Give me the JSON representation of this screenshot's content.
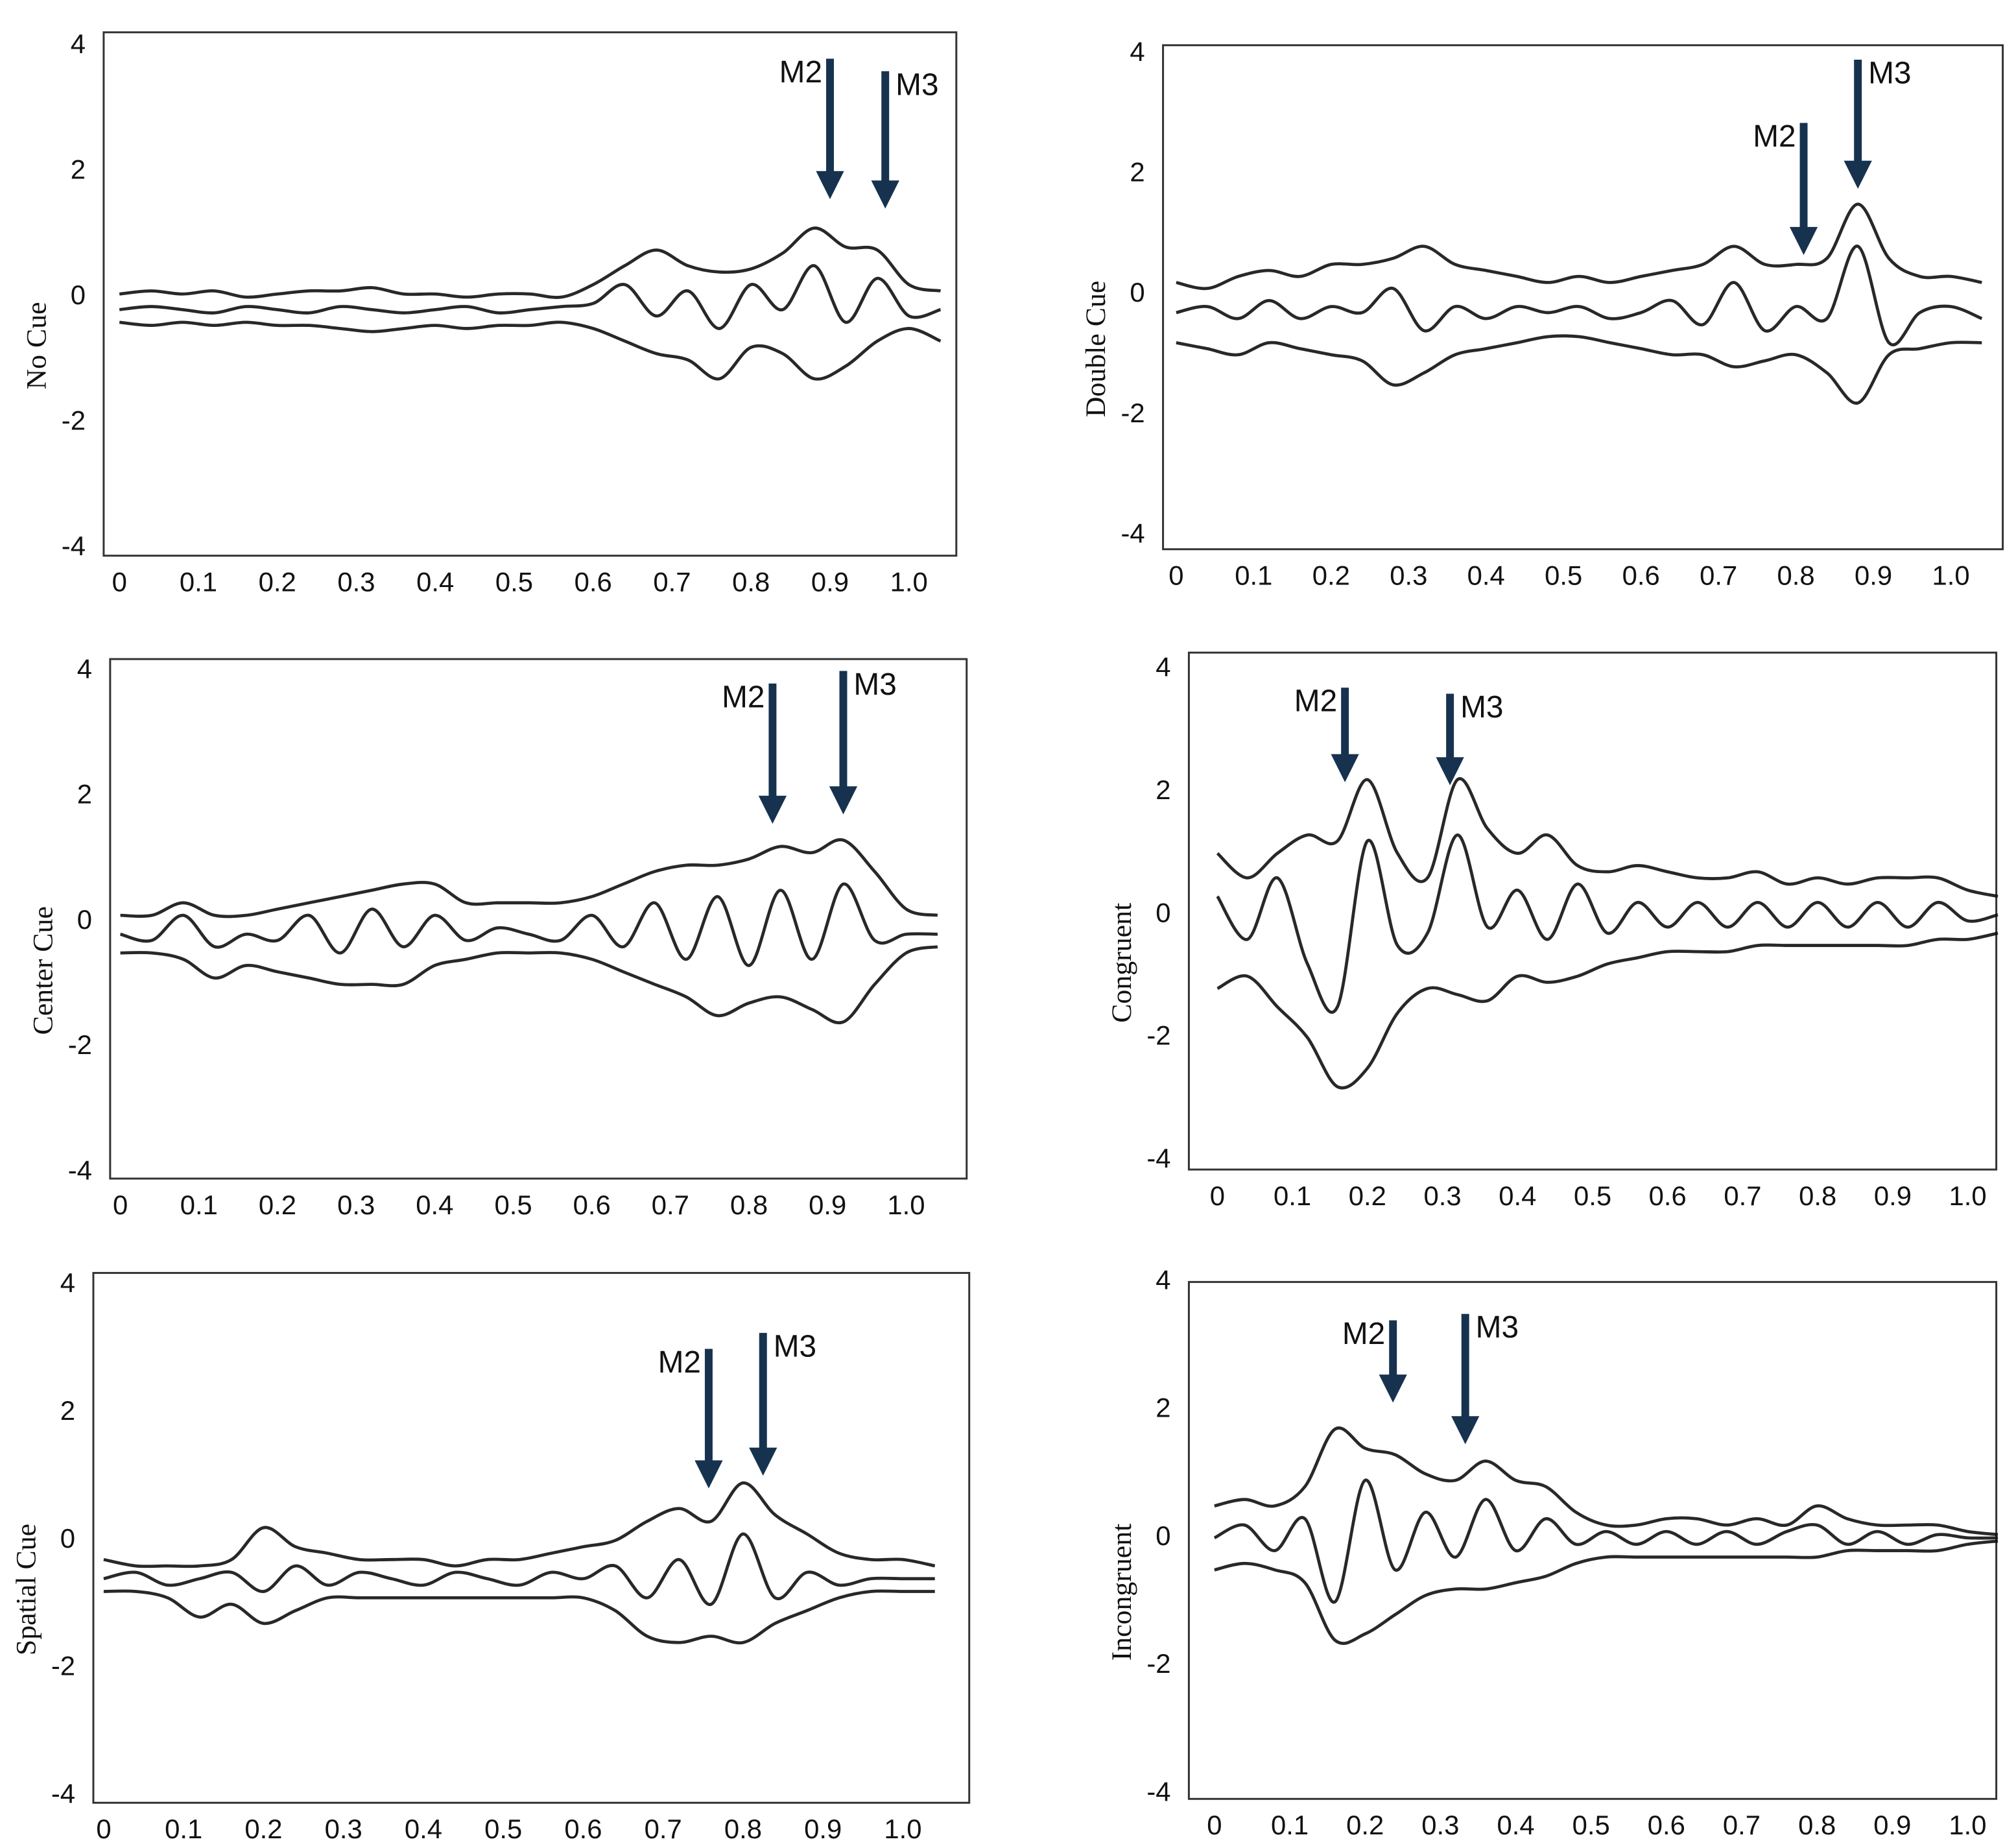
{
  "chart_data": [
    {
      "type": "line",
      "y_label": "No Cue",
      "x": [
        0,
        0.04,
        0.08,
        0.12,
        0.16,
        0.2,
        0.24,
        0.28,
        0.32,
        0.36,
        0.4,
        0.44,
        0.48,
        0.52,
        0.56,
        0.6,
        0.64,
        0.68,
        0.72,
        0.76,
        0.8,
        0.84,
        0.88,
        0.92,
        0.96,
        1.0,
        1.04
      ],
      "series": [
        {
          "color": "#111111",
          "values": [
            0.05,
            0.1,
            0.05,
            0.1,
            0,
            0.05,
            0.1,
            0.1,
            0.15,
            0.05,
            0.05,
            0,
            0.05,
            0.05,
            0,
            0.2,
            0.5,
            0.75,
            0.5,
            0.4,
            0.45,
            0.7,
            1.1,
            0.8,
            0.75,
            0.2,
            0.1
          ]
        },
        {
          "color": "#111111",
          "values": [
            -0.2,
            -0.15,
            -0.2,
            -0.25,
            -0.15,
            -0.2,
            -0.25,
            -0.15,
            -0.2,
            -0.25,
            -0.2,
            -0.15,
            -0.25,
            -0.2,
            -0.15,
            -0.1,
            0.2,
            -0.3,
            0.1,
            -0.5,
            0.2,
            -0.2,
            0.5,
            -0.4,
            0.3,
            -0.3,
            -0.2
          ]
        },
        {
          "color": "#111111",
          "values": [
            -0.4,
            -0.45,
            -0.4,
            -0.45,
            -0.4,
            -0.45,
            -0.45,
            -0.5,
            -0.55,
            -0.5,
            -0.45,
            -0.5,
            -0.45,
            -0.45,
            -0.4,
            -0.5,
            -0.7,
            -0.9,
            -1.0,
            -1.3,
            -0.8,
            -0.9,
            -1.3,
            -1.1,
            -0.7,
            -0.5,
            -0.7
          ]
        }
      ],
      "xlim": [
        -0.02,
        1.06
      ],
      "ylim": [
        -4.12,
        4.22
      ],
      "xticks": [
        0,
        0.1,
        0.2,
        0.3,
        0.4,
        0.5,
        0.6,
        0.7,
        0.8,
        0.9,
        {
          "value": 1,
          "label": "1.0"
        }
      ],
      "yticks": [
        -4,
        -2,
        0,
        2,
        4
      ],
      "annotations": [
        {
          "label": "M2",
          "x": 0.9,
          "y_tip": 1.7,
          "y_top": 3.8
        },
        {
          "label": "M3",
          "x": 0.97,
          "y_tip": 1.55,
          "y_top": 3.6
        }
      ]
    },
    {
      "type": "line",
      "y_label": "Double Cue",
      "x": [
        0,
        0.04,
        0.08,
        0.12,
        0.16,
        0.2,
        0.24,
        0.28,
        0.32,
        0.36,
        0.4,
        0.44,
        0.48,
        0.52,
        0.56,
        0.6,
        0.64,
        0.68,
        0.72,
        0.76,
        0.8,
        0.84,
        0.88,
        0.92,
        0.96,
        1.0,
        1.04
      ],
      "series": [
        {
          "color": "#111111",
          "values": [
            0.2,
            0.1,
            0.3,
            0.4,
            0.3,
            0.5,
            0.5,
            0.6,
            0.8,
            0.5,
            0.4,
            0.3,
            0.2,
            0.3,
            0.2,
            0.3,
            0.4,
            0.5,
            0.8,
            0.5,
            0.5,
            0.6,
            1.5,
            0.6,
            0.3,
            0.3,
            0.2
          ]
        },
        {
          "color": "#111111",
          "values": [
            -0.3,
            -0.2,
            -0.4,
            -0.1,
            -0.4,
            -0.2,
            -0.3,
            0.1,
            -0.6,
            -0.2,
            -0.4,
            -0.2,
            -0.3,
            -0.2,
            -0.4,
            -0.3,
            -0.1,
            -0.5,
            0.2,
            -0.6,
            -0.2,
            -0.4,
            0.8,
            -0.8,
            -0.3,
            -0.2,
            -0.4
          ]
        },
        {
          "color": "#111111",
          "values": [
            -0.8,
            -0.9,
            -1.0,
            -0.8,
            -0.9,
            -1.0,
            -1.1,
            -1.5,
            -1.3,
            -1.0,
            -0.9,
            -0.8,
            -0.7,
            -0.7,
            -0.8,
            -0.9,
            -1.0,
            -1.0,
            -1.2,
            -1.1,
            -1.0,
            -1.3,
            -1.8,
            -1.0,
            -0.9,
            -0.8,
            -0.8
          ]
        }
      ],
      "xlim": [
        -0.017,
        1.067
      ],
      "ylim": [
        -4.23,
        4.14
      ],
      "xticks": [
        0,
        0.1,
        0.2,
        0.3,
        0.4,
        0.5,
        0.6,
        0.7,
        0.8,
        0.9,
        {
          "value": 1,
          "label": "1.0"
        }
      ],
      "yticks": [
        -4,
        -2,
        0,
        2,
        4
      ],
      "annotations": [
        {
          "label": "M2",
          "x": 0.81,
          "y_tip": 0.8,
          "y_top": 2.85
        },
        {
          "label": "M3",
          "x": 0.88,
          "y_tip": 1.9,
          "y_top": 3.9
        }
      ]
    },
    {
      "type": "line",
      "y_label": "Center Cue",
      "x": [
        0,
        0.04,
        0.08,
        0.12,
        0.16,
        0.2,
        0.24,
        0.28,
        0.32,
        0.36,
        0.4,
        0.44,
        0.48,
        0.52,
        0.56,
        0.6,
        0.64,
        0.68,
        0.72,
        0.76,
        0.8,
        0.84,
        0.88,
        0.92,
        0.96,
        1.0,
        1.04
      ],
      "series": [
        {
          "color": "#111111",
          "values": [
            0.1,
            0.1,
            0.3,
            0.1,
            0.1,
            0.2,
            0.3,
            0.4,
            0.5,
            0.6,
            0.6,
            0.3,
            0.3,
            0.3,
            0.3,
            0.4,
            0.6,
            0.8,
            0.9,
            0.9,
            1.0,
            1.2,
            1.1,
            1.3,
            0.8,
            0.2,
            0.1
          ]
        },
        {
          "color": "#111111",
          "values": [
            -0.2,
            -0.3,
            0.1,
            -0.4,
            -0.2,
            -0.3,
            0.1,
            -0.5,
            0.2,
            -0.4,
            0.1,
            -0.3,
            -0.1,
            -0.2,
            -0.3,
            0.1,
            -0.4,
            0.3,
            -0.6,
            0.4,
            -0.7,
            0.5,
            -0.6,
            0.6,
            -0.3,
            -0.2,
            -0.2
          ]
        },
        {
          "color": "#111111",
          "values": [
            -0.5,
            -0.5,
            -0.6,
            -0.9,
            -0.7,
            -0.8,
            -0.9,
            -1.0,
            -1.0,
            -1.0,
            -0.7,
            -0.6,
            -0.5,
            -0.5,
            -0.5,
            -0.6,
            -0.8,
            -1.0,
            -1.2,
            -1.5,
            -1.3,
            -1.2,
            -1.4,
            -1.6,
            -1.0,
            -0.5,
            -0.4
          ]
        }
      ],
      "xlim": [
        -0.013,
        1.077
      ],
      "ylim": [
        -4.1,
        4.19
      ],
      "xticks": [
        0,
        0.1,
        0.2,
        0.3,
        0.4,
        0.5,
        0.6,
        0.7,
        0.8,
        0.9,
        {
          "value": 1,
          "label": "1.0"
        }
      ],
      "yticks": [
        -4,
        -2,
        0,
        2,
        4
      ],
      "annotations": [
        {
          "label": "M2",
          "x": 0.83,
          "y_tip": 1.7,
          "y_top": 3.8
        },
        {
          "label": "M3",
          "x": 0.92,
          "y_tip": 1.85,
          "y_top": 4.0
        }
      ]
    },
    {
      "type": "line",
      "y_label": "Congruent",
      "x": [
        0,
        0.04,
        0.08,
        0.12,
        0.16,
        0.2,
        0.24,
        0.28,
        0.32,
        0.36,
        0.4,
        0.44,
        0.48,
        0.52,
        0.56,
        0.6,
        0.64,
        0.68,
        0.72,
        0.76,
        0.8,
        0.84,
        0.88,
        0.92,
        0.96,
        1.0,
        1.04
      ],
      "series": [
        {
          "color": "#111111",
          "values": [
            1.0,
            0.6,
            1.0,
            1.3,
            1.2,
            2.2,
            1.0,
            0.6,
            2.2,
            1.4,
            1.0,
            1.3,
            0.8,
            0.7,
            0.8,
            0.7,
            0.6,
            0.6,
            0.7,
            0.5,
            0.6,
            0.5,
            0.6,
            0.6,
            0.6,
            0.4,
            0.3
          ]
        },
        {
          "color": "#111111",
          "values": [
            0.3,
            -0.4,
            0.6,
            -0.8,
            -1.5,
            1.2,
            -0.5,
            -0.3,
            1.3,
            -0.2,
            0.4,
            -0.4,
            0.5,
            -0.3,
            0.2,
            -0.2,
            0.2,
            -0.2,
            0.2,
            -0.2,
            0.2,
            -0.2,
            0.2,
            -0.2,
            0.2,
            -0.1,
            0
          ]
        },
        {
          "color": "#111111",
          "values": [
            -1.2,
            -1.0,
            -1.5,
            -2.0,
            -2.8,
            -2.5,
            -1.6,
            -1.2,
            -1.3,
            -1.4,
            -1.0,
            -1.1,
            -1.0,
            -0.8,
            -0.7,
            -0.6,
            -0.6,
            -0.6,
            -0.5,
            -0.5,
            -0.5,
            -0.5,
            -0.5,
            -0.5,
            -0.4,
            -0.4,
            -0.3
          ]
        }
      ],
      "xlim": [
        -0.038,
        1.038
      ],
      "ylim": [
        -4.15,
        4.27
      ],
      "xticks": [
        0,
        0.1,
        0.2,
        0.3,
        0.4,
        0.5,
        0.6,
        0.7,
        0.8,
        0.9,
        {
          "value": 1,
          "label": "1.0"
        }
      ],
      "yticks": [
        -4,
        -2,
        0,
        2,
        4
      ],
      "annotations": [
        {
          "label": "M2",
          "x": 0.17,
          "y_tip": 2.3,
          "y_top": 3.7
        },
        {
          "label": "M3",
          "x": 0.31,
          "y_tip": 2.25,
          "y_top": 3.6
        }
      ]
    },
    {
      "type": "line",
      "y_label": "Spatial Cue",
      "x": [
        0,
        0.04,
        0.08,
        0.12,
        0.16,
        0.2,
        0.24,
        0.28,
        0.32,
        0.36,
        0.4,
        0.44,
        0.48,
        0.52,
        0.56,
        0.6,
        0.64,
        0.68,
        0.72,
        0.76,
        0.8,
        0.84,
        0.88,
        0.92,
        0.96,
        1.0,
        1.04
      ],
      "series": [
        {
          "color": "#111111",
          "values": [
            -0.3,
            -0.4,
            -0.4,
            -0.4,
            -0.3,
            0.2,
            -0.1,
            -0.2,
            -0.3,
            -0.3,
            -0.3,
            -0.4,
            -0.3,
            -0.3,
            -0.2,
            -0.1,
            0.0,
            0.3,
            0.5,
            0.3,
            0.9,
            0.4,
            0.1,
            -0.2,
            -0.3,
            -0.3,
            -0.4
          ]
        },
        {
          "color": "#111111",
          "values": [
            -0.6,
            -0.5,
            -0.7,
            -0.6,
            -0.5,
            -0.8,
            -0.4,
            -0.7,
            -0.5,
            -0.6,
            -0.7,
            -0.5,
            -0.6,
            -0.7,
            -0.5,
            -0.6,
            -0.4,
            -0.9,
            -0.3,
            -1.0,
            0.1,
            -0.9,
            -0.5,
            -0.7,
            -0.6,
            -0.6,
            -0.6
          ]
        },
        {
          "color": "#111111",
          "values": [
            -0.8,
            -0.8,
            -0.9,
            -1.2,
            -1.0,
            -1.3,
            -1.1,
            -0.9,
            -0.9,
            -0.9,
            -0.9,
            -0.9,
            -0.9,
            -0.9,
            -0.9,
            -0.9,
            -1.1,
            -1.5,
            -1.6,
            -1.5,
            -1.6,
            -1.3,
            -1.1,
            -0.9,
            -0.8,
            -0.8,
            -0.8
          ]
        }
      ],
      "xlim": [
        -0.013,
        1.083
      ],
      "ylim": [
        -4.11,
        4.19
      ],
      "xticks": [
        0,
        0.1,
        0.2,
        0.3,
        0.4,
        0.5,
        0.6,
        0.7,
        0.8,
        0.9,
        {
          "value": 1,
          "label": "1.0"
        }
      ],
      "yticks": [
        -4,
        -2,
        0,
        2,
        4
      ],
      "annotations": [
        {
          "label": "M2",
          "x": 0.757,
          "y_tip": 0.95,
          "y_top": 3.0
        },
        {
          "label": "M3",
          "x": 0.825,
          "y_tip": 1.15,
          "y_top": 3.25
        }
      ]
    },
    {
      "type": "line",
      "y_label": "Incongruent",
      "x": [
        0,
        0.04,
        0.08,
        0.12,
        0.16,
        0.2,
        0.24,
        0.28,
        0.32,
        0.36,
        0.4,
        0.44,
        0.48,
        0.52,
        0.56,
        0.6,
        0.64,
        0.68,
        0.72,
        0.76,
        0.8,
        0.84,
        0.88,
        0.92,
        0.96,
        1.0,
        1.04
      ],
      "series": [
        {
          "color": "#111111",
          "values": [
            0.5,
            0.6,
            0.5,
            0.8,
            1.7,
            1.4,
            1.3,
            1.0,
            0.9,
            1.2,
            0.9,
            0.8,
            0.4,
            0.2,
            0.2,
            0.3,
            0.3,
            0.2,
            0.3,
            0.2,
            0.5,
            0.3,
            0.2,
            0.2,
            0.2,
            0.1,
            0.05
          ]
        },
        {
          "color": "#111111",
          "values": [
            0,
            0.2,
            -0.2,
            0.3,
            -1.0,
            0.9,
            -0.5,
            0.4,
            -0.3,
            0.6,
            -0.2,
            0.3,
            -0.1,
            0.1,
            -0.1,
            0.1,
            -0.1,
            0.1,
            -0.1,
            0.1,
            0.2,
            -0.1,
            0.1,
            -0.1,
            0.05,
            0,
            0
          ]
        },
        {
          "color": "#111111",
          "values": [
            -0.5,
            -0.4,
            -0.5,
            -0.7,
            -1.6,
            -1.5,
            -1.2,
            -0.9,
            -0.8,
            -0.8,
            -0.7,
            -0.6,
            -0.4,
            -0.3,
            -0.3,
            -0.3,
            -0.3,
            -0.3,
            -0.3,
            -0.3,
            -0.3,
            -0.2,
            -0.2,
            -0.2,
            -0.2,
            -0.1,
            -0.05
          ]
        }
      ],
      "xlim": [
        -0.034,
        1.038
      ],
      "ylim": [
        -4.08,
        4.0
      ],
      "xticks": [
        0,
        0.1,
        0.2,
        0.3,
        0.4,
        0.5,
        0.6,
        0.7,
        0.8,
        0.9,
        {
          "value": 1,
          "label": "1.0"
        }
      ],
      "yticks": [
        -4,
        -2,
        0,
        2,
        4
      ],
      "annotations": [
        {
          "label": "M2",
          "x": 0.237,
          "y_tip": 2.25,
          "y_top": 3.4
        },
        {
          "label": "M3",
          "x": 0.333,
          "y_tip": 1.6,
          "y_top": 3.5
        }
      ]
    }
  ]
}
